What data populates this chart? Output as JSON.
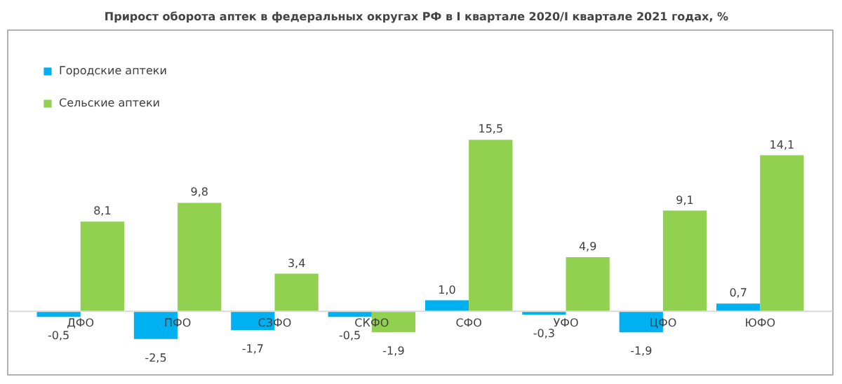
{
  "chart_data": {
    "type": "bar",
    "title": "Прирост оборота аптек в федеральных округах РФ в I квартале  2020/I квартале  2021 годах, %",
    "categories": [
      "ДФО",
      "ПФО",
      "СЗФО",
      "СКФО",
      "СФО",
      "УФО",
      "ЦФО",
      "ЮФО"
    ],
    "series": [
      {
        "name": "Городские аптеки",
        "color": "#00b0f0",
        "values": [
          -0.5,
          -2.5,
          -1.7,
          -0.5,
          1.0,
          -0.3,
          -1.9,
          0.7
        ],
        "value_labels": [
          "-0,5",
          "-2,5",
          "-1,7",
          "-0,5",
          "1,0",
          "-0,3",
          "-1,9",
          "0,7"
        ]
      },
      {
        "name": "Сельские аптеки",
        "color": "#92d050",
        "values": [
          8.1,
          9.8,
          3.4,
          -1.9,
          15.5,
          4.9,
          9.1,
          14.1
        ],
        "value_labels": [
          "8,1",
          "9,8",
          "3,4",
          "-1,9",
          "15,5",
          "4,9",
          "9,1",
          "14,1"
        ]
      }
    ],
    "legend": "top left",
    "grid": false
  }
}
